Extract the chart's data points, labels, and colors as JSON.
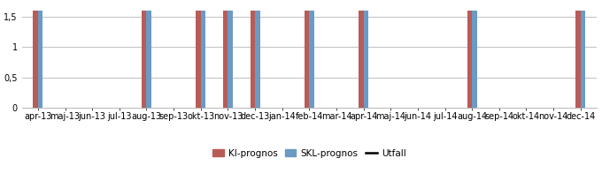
{
  "categories": [
    "apr-13",
    "maj-13",
    "jun-13",
    "jul-13",
    "aug-13",
    "sep-13",
    "okt-13",
    "nov-13",
    "dec-13",
    "jan-14",
    "feb-14",
    "mar-14",
    "apr-14",
    "maj-14",
    "jun-14",
    "jul-14",
    "aug-14",
    "sep-14",
    "okt-14",
    "nov-14",
    "dec-14"
  ],
  "ki_values": [
    1.6,
    0,
    0,
    0,
    1.6,
    0,
    1.6,
    1.6,
    1.6,
    0,
    1.6,
    0,
    1.6,
    0,
    0,
    0,
    1.6,
    0,
    0,
    0,
    1.6
  ],
  "skl_values": [
    1.6,
    0,
    0,
    0,
    1.6,
    0,
    1.6,
    1.6,
    1.6,
    0,
    1.6,
    0,
    1.6,
    0,
    0,
    0,
    1.6,
    0,
    0,
    0,
    1.6
  ],
  "ki_color": "#B85C58",
  "skl_color": "#6B9AC4",
  "utfall_color": "#000000",
  "ylabel_ticks": [
    0,
    0.5,
    1.0,
    1.5
  ],
  "ylim": [
    0,
    1.72
  ],
  "bar_width": 0.18,
  "legend_ki": "KI-prognos",
  "legend_skl": "SKL-prognos",
  "legend_utfall": "Utfall",
  "grid_color": "#C0C0C0",
  "bg_color": "#FFFFFF",
  "tick_fontsize": 7,
  "legend_fontsize": 7.5
}
